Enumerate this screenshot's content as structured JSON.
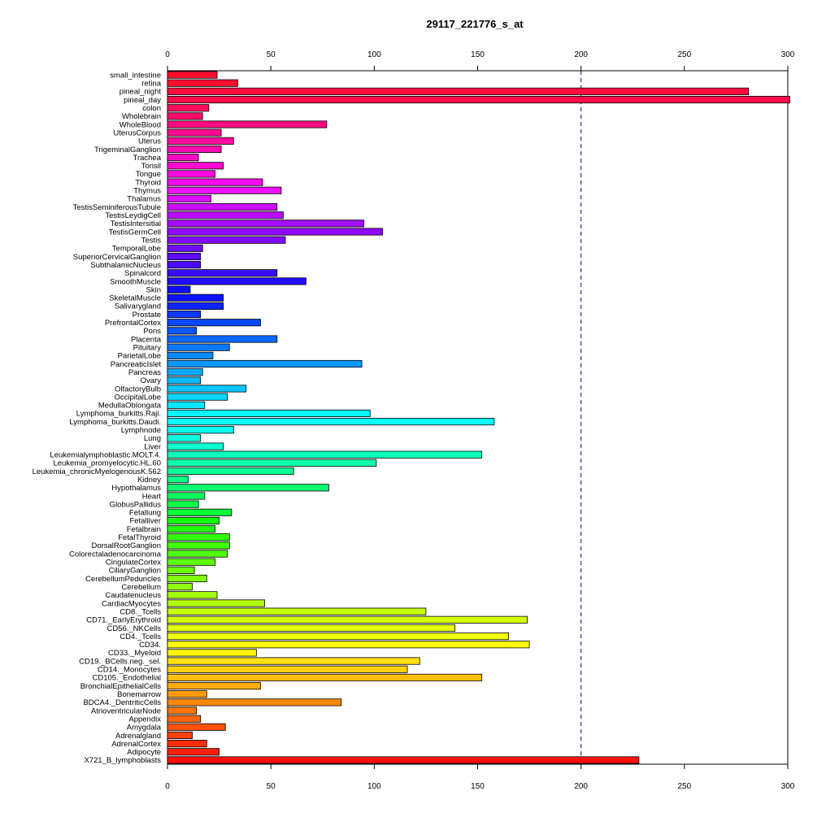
{
  "chart_data": {
    "type": "bar",
    "orientation": "horizontal",
    "title": "29117_221776_s_at",
    "xlim": [
      0,
      300
    ],
    "xticks": [
      0,
      50,
      100,
      150,
      200,
      250,
      300
    ],
    "reference_line": {
      "value": 200,
      "style": "dashed",
      "color": "#00008b"
    },
    "grid": false,
    "categories": [
      "small_intestine",
      "retina",
      "pineal_night",
      "pineal_day",
      "colon",
      "Wholebrain",
      "WholeBlood",
      "UterusCorpus",
      "Uterus",
      "TrigeminalGanglion",
      "Trachea",
      "Tonsil",
      "Tongue",
      "Thyroid",
      "Thymus",
      "Thalamus",
      "TestisSeminiferousTubule",
      "TestisLeydigCell",
      "TestisIntersitial",
      "TestisGermCell",
      "Testis",
      "TemporalLobe",
      "SuperiorCervicalGanglion",
      "SubthalamicNucleus",
      "Spinalcord",
      "SmoothMuscle",
      "Skin",
      "SkeletalMuscle",
      "Salivarygland",
      "Prostate",
      "PrefrontalCortex",
      "Pons",
      "Placenta",
      "Pituitary",
      "ParietalLobe",
      "PancreaticIslet",
      "Pancreas",
      "Ovary",
      "OlfactoryBulb",
      "OccipitalLobe",
      "MedullaOblongata",
      "Lymphoma_burkitts.Raji.",
      "Lymphoma_burkitts.Daudi.",
      "Lymphnode",
      "Lung",
      "Liver",
      "Leukemialymphoblastic.MOLT.4.",
      "Leukemia_promyelocytic.HL.60",
      "Leukemia_chronicMyelogenousK.562",
      "Kidney",
      "Hypothalamus",
      "Heart",
      "GlobusPallidus",
      "Fetallung",
      "Fetalliver",
      "Fetalbrain",
      "FetalThyroid",
      "DorsalRootGanglion",
      "Colorectaladenocarcinoma",
      "CingulateCortex",
      "CiliaryGanglion",
      "CerebellumPeduncles",
      "Cerebellum",
      "Caudatenucleus",
      "CardiacMyocytes",
      "CD8._Tcells",
      "CD71._EarlyErythroid",
      "CD56._NKCells",
      "CD4._Tcells",
      "CD34.",
      "CD33._Myeloid",
      "CD19._BCells.neg._sel.",
      "CD14._Monocytes",
      "CD105._Endothelial",
      "BronchialEpithelialCells",
      "Bonemarrow",
      "BDCA4._DentriticCells",
      "AtrioventricularNode",
      "Appendix",
      "Amygdala",
      "Adrenalgland",
      "AdrenalCortex",
      "Adipocyte",
      "X721_B_lymphoblasts"
    ],
    "values": [
      24,
      34,
      281,
      301,
      20,
      17,
      77,
      26,
      32,
      26,
      15,
      27,
      23,
      46,
      55,
      21,
      53,
      56,
      95,
      104,
      57,
      17,
      16,
      16,
      53,
      67,
      11,
      27,
      27,
      16,
      45,
      14,
      53,
      30,
      22,
      94,
      17,
      16,
      38,
      29,
      18,
      98,
      158,
      32,
      16,
      27,
      152,
      101,
      61,
      10,
      78,
      18,
      15,
      31,
      25,
      23,
      30,
      30,
      29,
      23,
      13,
      19,
      12,
      24,
      47,
      125,
      174,
      139,
      165,
      175,
      43,
      122,
      116,
      152,
      45,
      19,
      84,
      14,
      16,
      28,
      12,
      19,
      25,
      228
    ],
    "bar_colors": [
      "#ff0d2a",
      "#ff0e2e",
      "#ff0d3f",
      "#ff0a4a",
      "#ff0c5c",
      "#ff0a6a",
      "#ff0a80",
      "#ff0c91",
      "#ff0c9f",
      "#ff0db0",
      "#ff0cc2",
      "#ff0cd0",
      "#ff0ae2",
      "#f80af0",
      "#ec12ff",
      "#dc10ff",
      "#cc0fff",
      "#bb0cff",
      "#a30cff",
      "#8f0aff",
      "#820aff",
      "#710cff",
      "#5e0cff",
      "#4a0aff",
      "#3a0dff",
      "#220cff",
      "#0a0cff",
      "#0a12ff",
      "#0a26ff",
      "#0a38ff",
      "#0a46ff",
      "#0a56ff",
      "#0a68ff",
      "#0a78ff",
      "#0a88ff",
      "#0a98ff",
      "#0aa8ff",
      "#0ab8ff",
      "#0ac6ff",
      "#0ad6ff",
      "#0ae6ff",
      "#0af6ff",
      "#0affff",
      "#0afff0",
      "#0affe0",
      "#0affd0",
      "#0affbc",
      "#0affaa",
      "#0aff96",
      "#0aff84",
      "#0aff70",
      "#0aff5e",
      "#0aff4a",
      "#0aff36",
      "#12ff0a",
      "#22ff0a",
      "#30ff0a",
      "#3eff0a",
      "#4eff0a",
      "#5eff0a",
      "#6eff0a",
      "#80ff0a",
      "#92ff0a",
      "#a4ff0a",
      "#b6ff0a",
      "#c6ff0a",
      "#d6ff0a",
      "#e2ff0a",
      "#f0ff0a",
      "#ffff0a",
      "#fff00a",
      "#ffe00a",
      "#ffd00a",
      "#ffbe0a",
      "#ffac0a",
      "#ff9a0a",
      "#ff880a",
      "#ff760a",
      "#ff640a",
      "#ff520a",
      "#ff400a",
      "#ff2e0a",
      "#ff1e0a",
      "#ff0d0a"
    ]
  }
}
